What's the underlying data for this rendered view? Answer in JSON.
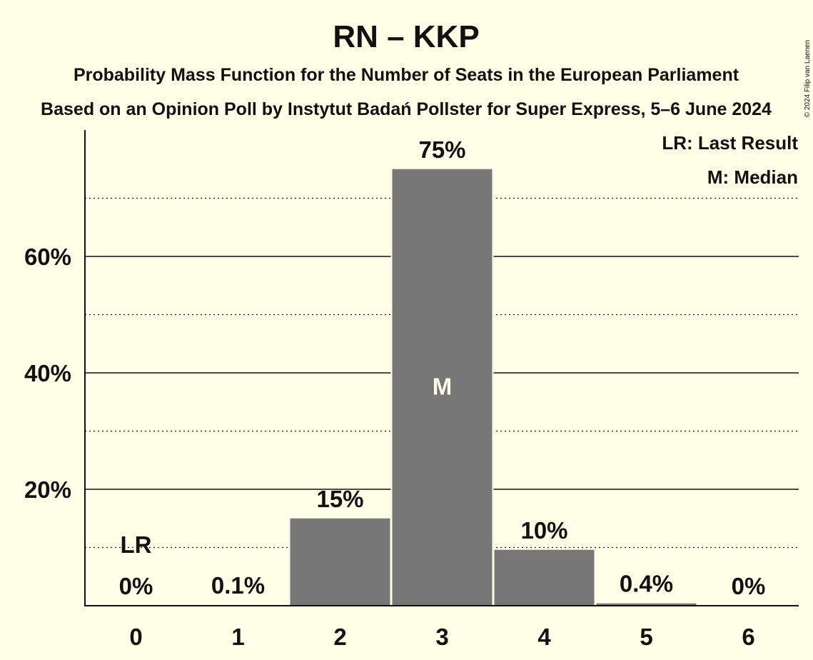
{
  "chart_data": {
    "type": "bar",
    "title": "RN – KKP",
    "subtitle_1": "Probability Mass Function for the Number of Seats in the European Parliament",
    "subtitle_2": "Based on an Opinion Poll by Instytut Badań Pollster for Super Express, 5–6 June 2024",
    "categories": [
      "0",
      "1",
      "2",
      "3",
      "4",
      "5",
      "6"
    ],
    "values": [
      0,
      0.1,
      15,
      75,
      9.6,
      0.4,
      0
    ],
    "value_labels": [
      "0%",
      "0.1%",
      "15%",
      "75%",
      "10%",
      "0.4%",
      "0%"
    ],
    "y_ticks": [
      {
        "value": 20,
        "label": "20%"
      },
      {
        "value": 40,
        "label": "40%"
      },
      {
        "value": 60,
        "label": "60%"
      }
    ],
    "y_minor_gridlines": [
      10,
      30,
      50,
      70
    ],
    "ylim": [
      0,
      81.5
    ],
    "last_result_category": "0",
    "last_result_marker": "LR",
    "median_category": "3",
    "median_marker": "M",
    "legend": [
      "LR: Last Result",
      "M: Median"
    ],
    "legend_placement": "top-right",
    "copyright": "© 2024 Filip van Laenen",
    "colors": {
      "background": "#FFFEE6",
      "bar": "#777777",
      "text": "#111111",
      "median_text": "#FFFEE6"
    }
  }
}
